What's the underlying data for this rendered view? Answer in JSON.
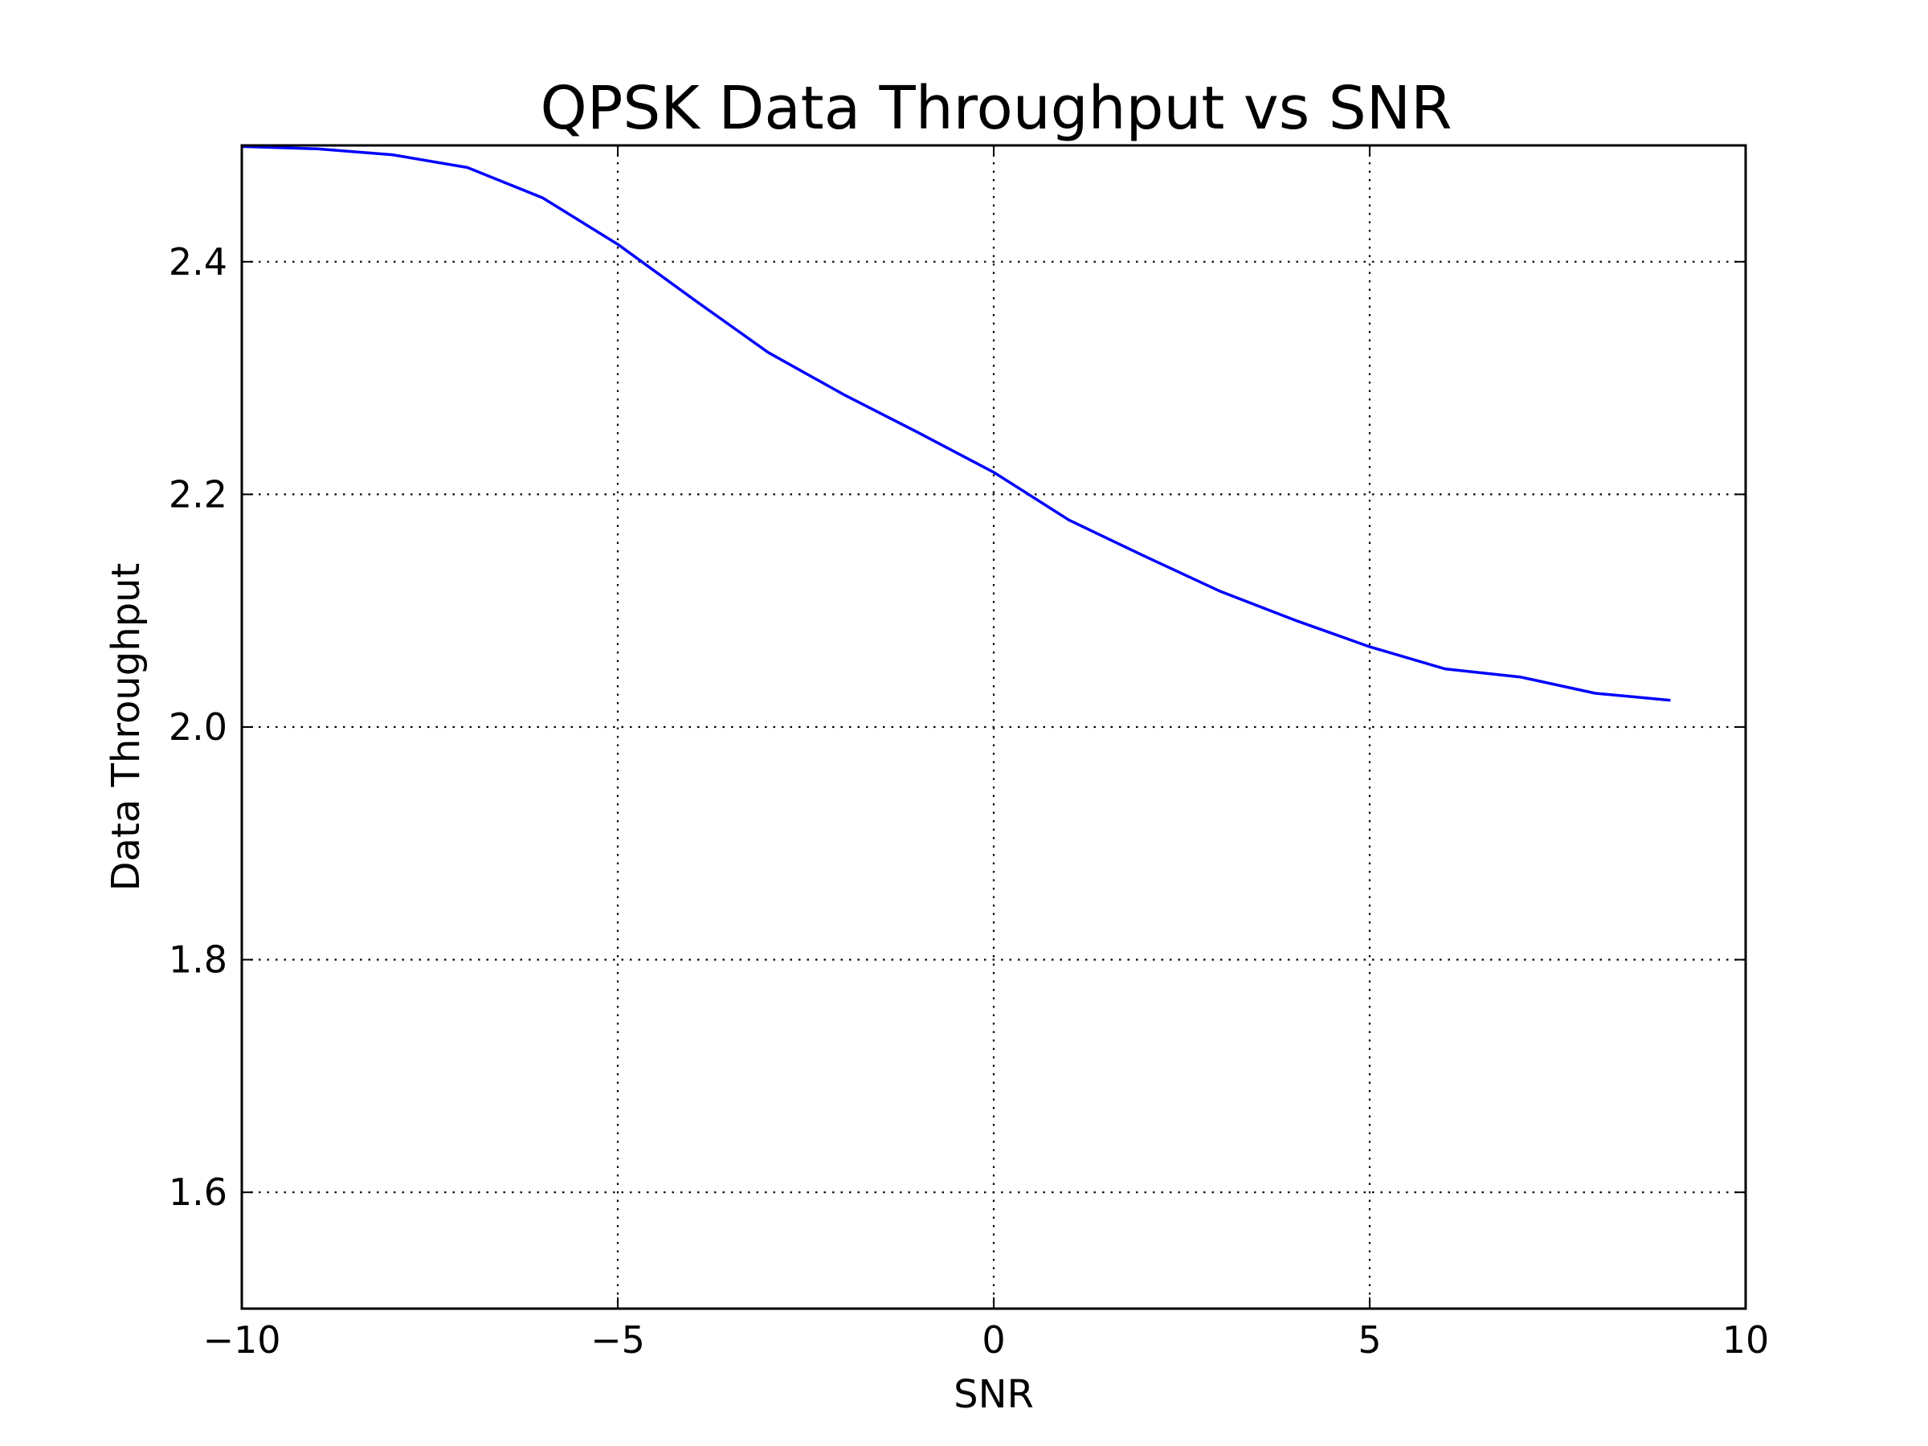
{
  "chart_data": {
    "type": "line",
    "title": "QPSK Data Throughput vs SNR",
    "xlabel": "SNR",
    "ylabel": "Data Throughput",
    "xlim": [
      -10,
      10
    ],
    "ylim": [
      1.5,
      2.5
    ],
    "xticks": [
      -10,
      -5,
      0,
      5,
      10
    ],
    "xtick_labels": [
      "−10",
      "−5",
      "0",
      "5",
      "10"
    ],
    "yticks": [
      1.6,
      1.8,
      2.0,
      2.2,
      2.4
    ],
    "ytick_labels": [
      "1.6",
      "1.8",
      "2.0",
      "2.2",
      "2.4"
    ],
    "grid": true,
    "x": [
      -10,
      -9,
      -8,
      -7,
      -6,
      -5,
      -4,
      -3,
      -2,
      -1,
      0,
      1,
      2,
      3,
      4,
      5,
      6,
      7,
      8,
      9
    ],
    "series": [
      {
        "color": "#0000ff",
        "values": [
          2.499,
          2.497,
          2.492,
          2.481,
          2.455,
          2.415,
          2.368,
          2.322,
          2.286,
          2.253,
          2.219,
          2.178,
          2.147,
          2.117,
          2.092,
          2.069,
          2.05,
          2.043,
          2.029,
          2.023
        ]
      }
    ]
  }
}
